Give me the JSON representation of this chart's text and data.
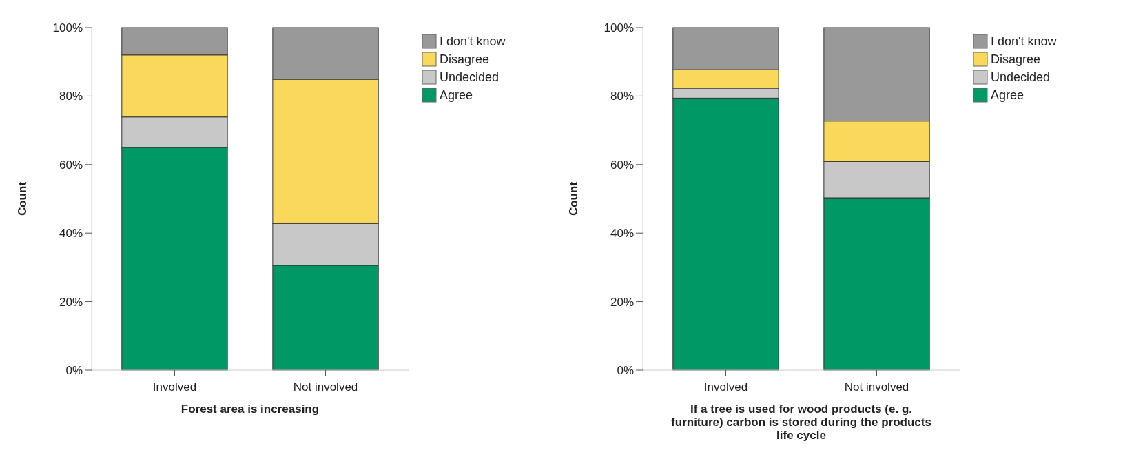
{
  "chart_data": [
    {
      "type": "bar",
      "stacked": true,
      "xlabel": "Forest area is increasing",
      "ylabel": "Count",
      "categories": [
        "Involved",
        "Not involved"
      ],
      "ylim": [
        0,
        100
      ],
      "yticks": [
        {
          "value": 0,
          "label": "0%"
        },
        {
          "value": 20,
          "label": "20%"
        },
        {
          "value": 40,
          "label": "40%"
        },
        {
          "value": 60,
          "label": "60%"
        },
        {
          "value": 80,
          "label": "80%"
        },
        {
          "value": 100,
          "label": "100%"
        }
      ],
      "legend": "top right",
      "grid": false,
      "series": [
        {
          "name": "Agree",
          "color": "#009966",
          "values": [
            65.0,
            30.6
          ]
        },
        {
          "name": "Undecided",
          "color": "#c8c8c8",
          "values": [
            8.9,
            12.2
          ]
        },
        {
          "name": "Disagree",
          "color": "#f9d85c",
          "values": [
            18.1,
            42.1
          ]
        },
        {
          "name": "I don't know",
          "color": "#999999",
          "values": [
            8.0,
            15.1
          ]
        }
      ]
    },
    {
      "type": "bar",
      "stacked": true,
      "xlabel": "If a tree is used for wood products (e. g. furniture) carbon is stored during the products life cycle",
      "ylabel": "Count",
      "categories": [
        "Involved",
        "Not involved"
      ],
      "ylim": [
        0,
        100
      ],
      "yticks": [
        {
          "value": 0,
          "label": "0%"
        },
        {
          "value": 20,
          "label": "20%"
        },
        {
          "value": 40,
          "label": "40%"
        },
        {
          "value": 60,
          "label": "60%"
        },
        {
          "value": 80,
          "label": "80%"
        },
        {
          "value": 100,
          "label": "100%"
        }
      ],
      "legend": "top right",
      "grid": false,
      "series": [
        {
          "name": "Agree",
          "color": "#009966",
          "values": [
            79.4,
            50.3
          ]
        },
        {
          "name": "Undecided",
          "color": "#c8c8c8",
          "values": [
            2.9,
            10.6
          ]
        },
        {
          "name": "Disagree",
          "color": "#f9d85c",
          "values": [
            5.4,
            11.8
          ]
        },
        {
          "name": "I don't know",
          "color": "#999999",
          "values": [
            12.3,
            27.3
          ]
        }
      ]
    }
  ]
}
